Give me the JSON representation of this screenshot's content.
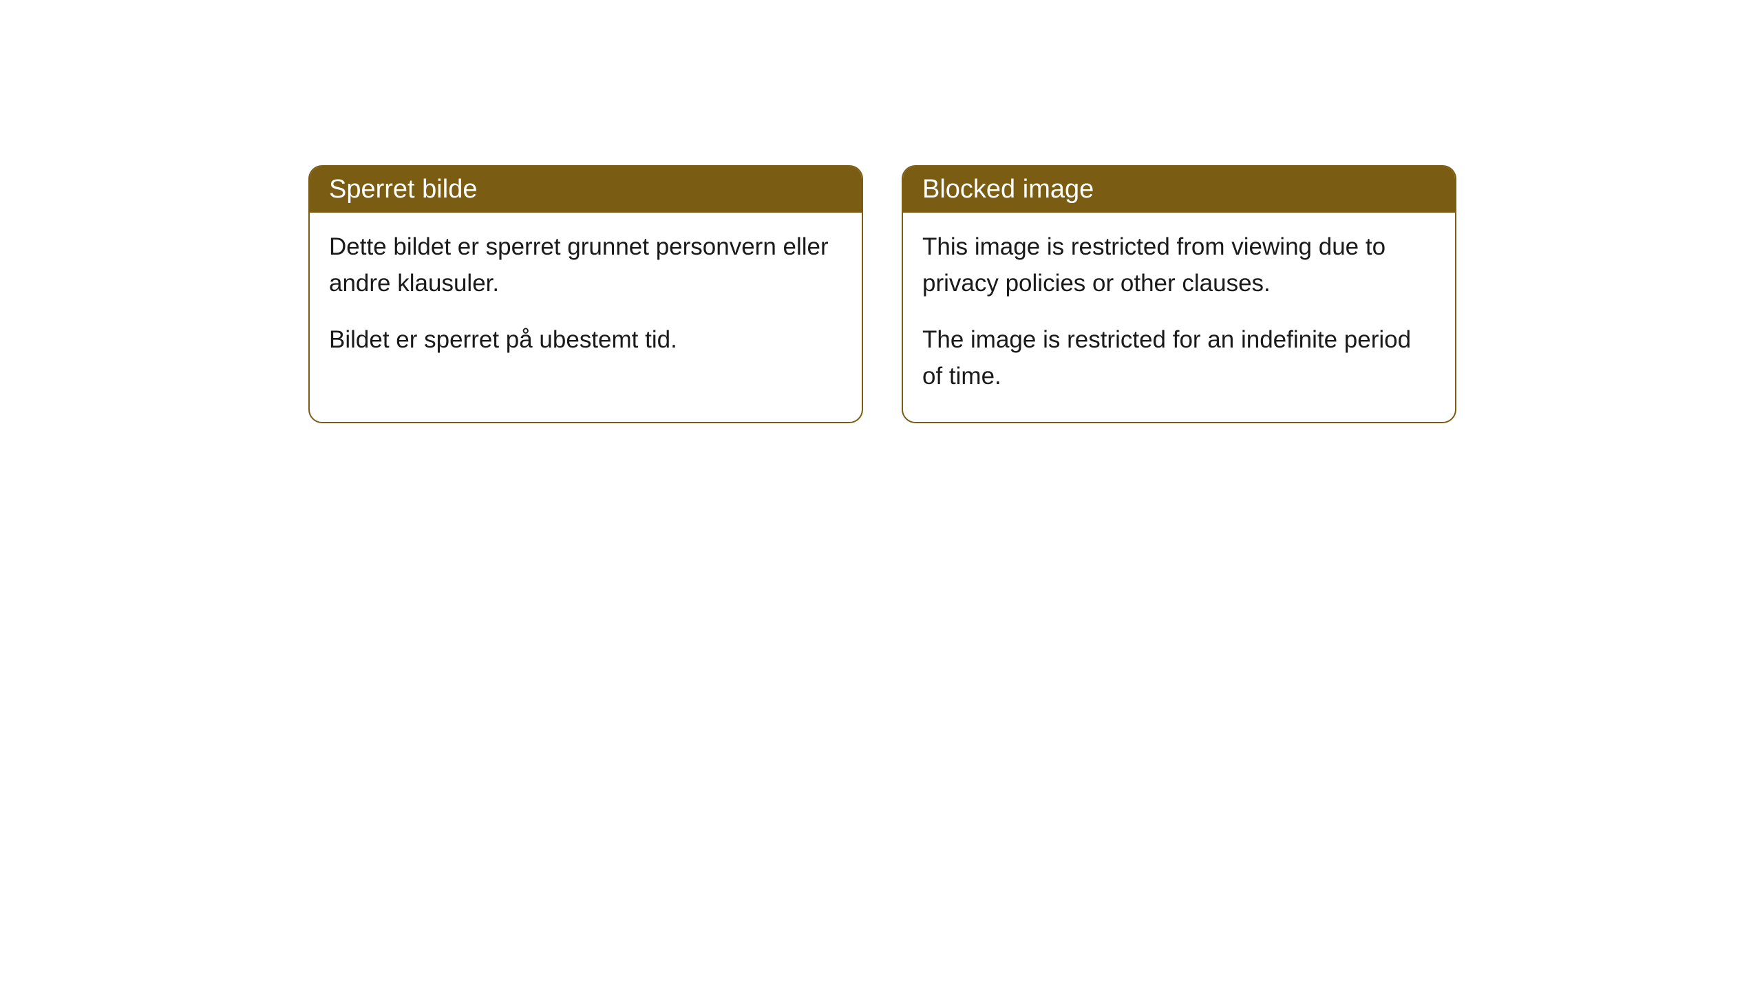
{
  "cards": [
    {
      "title": "Sperret bilde",
      "paragraph1": "Dette bildet er sperret grunnet personvern eller andre klausuler.",
      "paragraph2": "Bildet er sperret på ubestemt tid."
    },
    {
      "title": "Blocked image",
      "paragraph1": "This image is restricted from viewing due to privacy policies or other clauses.",
      "paragraph2": "The image is restricted for an indefinite period of time."
    }
  ],
  "styling": {
    "header_background": "#7a5c13",
    "header_text_color": "#ffffff",
    "border_color": "#7a5c13",
    "body_background": "#ffffff",
    "body_text_color": "#1a1a1a",
    "border_radius": 20,
    "title_fontsize": 38,
    "body_fontsize": 35
  }
}
